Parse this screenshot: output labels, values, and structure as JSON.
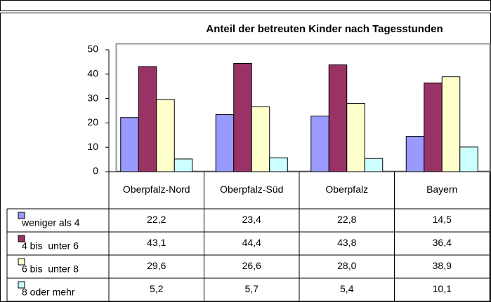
{
  "chart_data": {
    "type": "bar",
    "title": "Anteil der betreuten Kinder nach Tagesstunden",
    "categories": [
      "Oberpfalz-Nord",
      "Oberpfalz-Süd",
      "Oberpfalz",
      "Bayern"
    ],
    "series": [
      {
        "name": "weniger als 4",
        "color": "#9999ff",
        "values": [
          22.2,
          23.4,
          22.8,
          14.5
        ],
        "value_labels": [
          "22,2",
          "23,4",
          "22,8",
          "14,5"
        ]
      },
      {
        "name": "4 bis  unter 6",
        "color": "#993366",
        "values": [
          43.1,
          44.4,
          43.8,
          36.4
        ],
        "value_labels": [
          "43,1",
          "44,4",
          "43,8",
          "36,4"
        ]
      },
      {
        "name": "6 bis  unter 8",
        "color": "#ffffcc",
        "values": [
          29.6,
          26.6,
          28.0,
          38.9
        ],
        "value_labels": [
          "29,6",
          "26,6",
          "28,0",
          "38,9"
        ]
      },
      {
        "name": "8 oder mehr",
        "color": "#ccffff",
        "values": [
          5.2,
          5.7,
          5.4,
          10.1
        ],
        "value_labels": [
          "5,2",
          "5,7",
          "5,4",
          "10,1"
        ]
      }
    ],
    "ylim": [
      0,
      50
    ],
    "yticks": [
      0,
      10,
      20,
      30,
      40,
      50
    ],
    "grid": false
  }
}
